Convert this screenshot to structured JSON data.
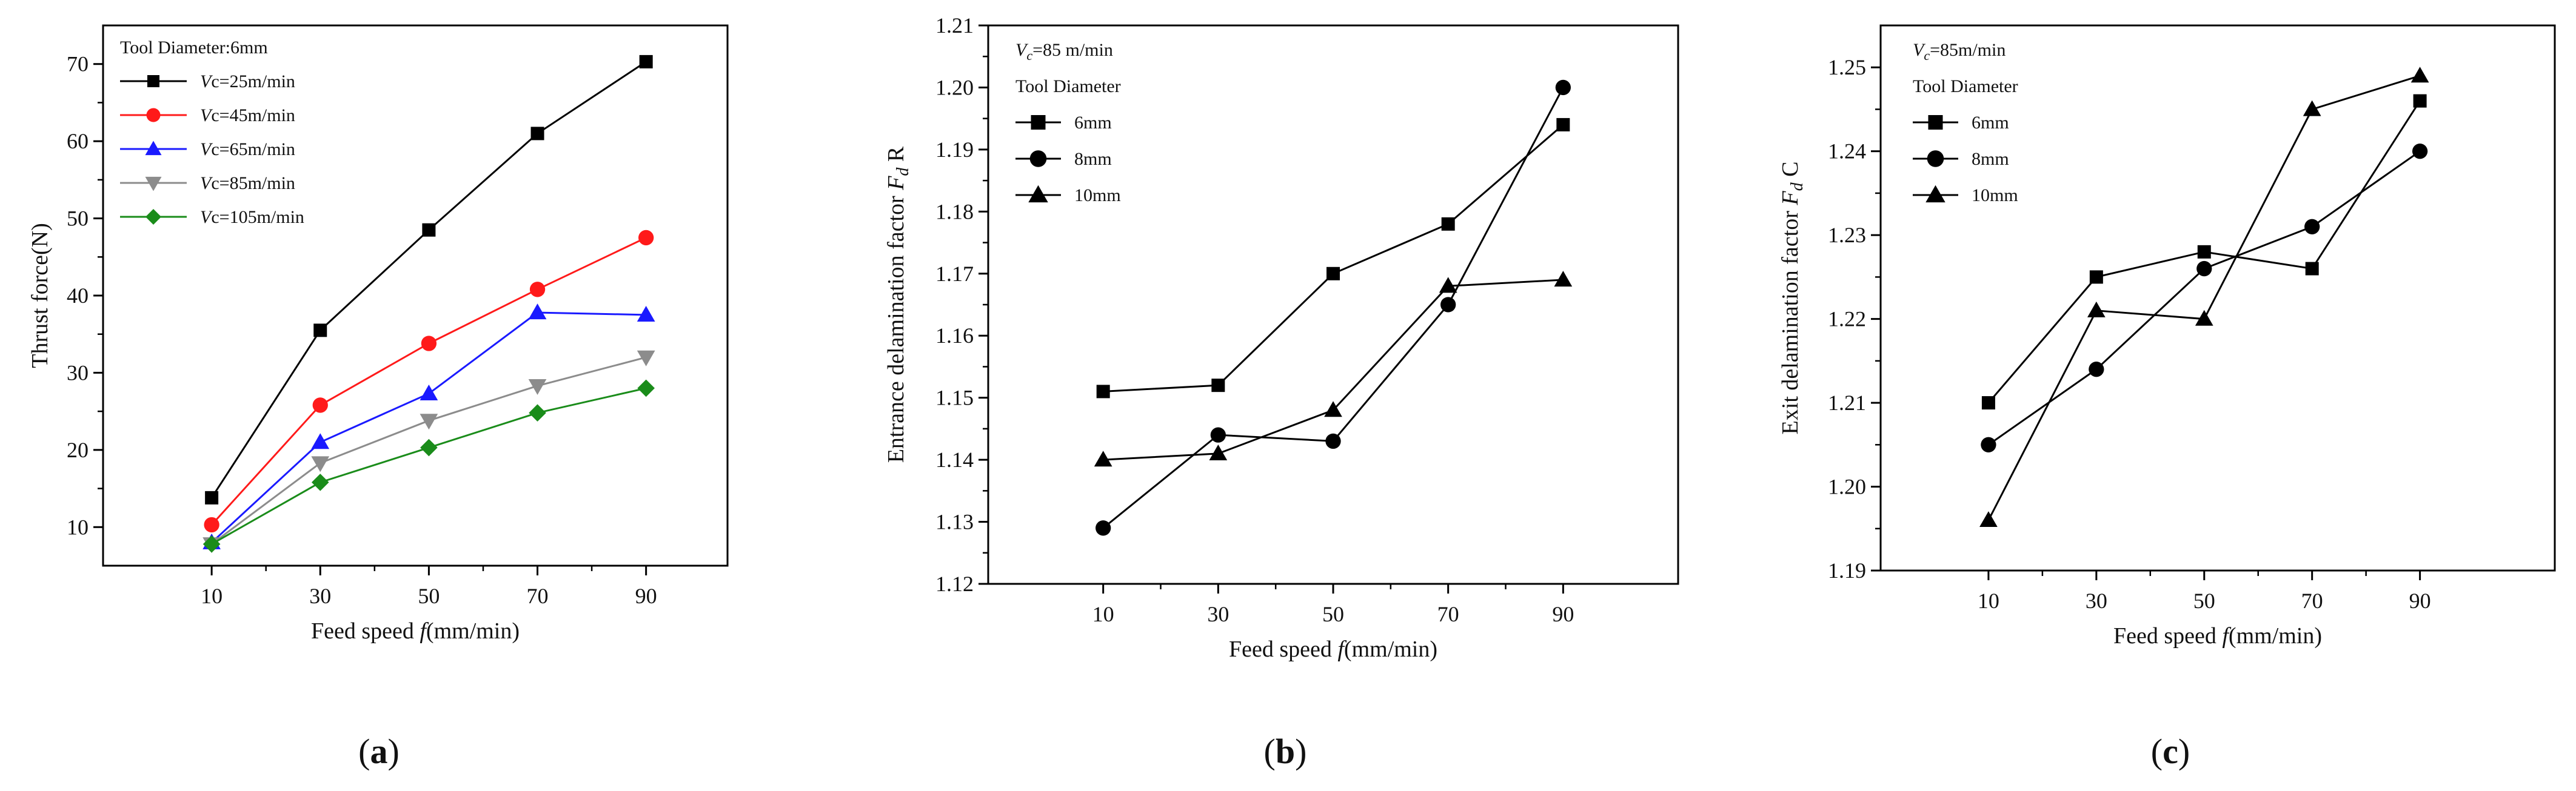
{
  "chart_data": [
    {
      "type": "line",
      "panel_label": "a",
      "legend_title": "Tool Diameter:6mm",
      "xlabel": "Feed speed ",
      "xlabel_symbol": "f",
      "xlabel_unit": "(mm/min)",
      "ylabel": "Thrust force(N)",
      "x": [
        10,
        30,
        50,
        70,
        90
      ],
      "xlim": [
        -10,
        105
      ],
      "ylim": [
        5,
        75
      ],
      "yticks": [
        10,
        20,
        30,
        40,
        50,
        60,
        70
      ],
      "ytick_labels": [
        "10",
        "20",
        "30",
        "40",
        "50",
        "60",
        "70"
      ],
      "series": [
        {
          "symbol": "V",
          "label": "c=25m/min",
          "color": "#000000",
          "marker": "square",
          "values": [
            13.8,
            35.5,
            48.5,
            61.0,
            70.3
          ]
        },
        {
          "symbol": "V",
          "label": "c=45m/min",
          "color": "#ff1a1a",
          "marker": "circle",
          "values": [
            10.3,
            25.8,
            33.8,
            40.8,
            47.5
          ]
        },
        {
          "symbol": "V",
          "label": "c=65m/min",
          "color": "#1a1aff",
          "marker": "triangle-up",
          "values": [
            8.0,
            21.0,
            27.3,
            37.8,
            37.5
          ]
        },
        {
          "symbol": "V",
          "label": "c=85m/min",
          "color": "#8c8c8c",
          "marker": "triangle-down",
          "values": [
            7.8,
            18.3,
            23.8,
            28.3,
            32.0
          ]
        },
        {
          "symbol": "V",
          "label": "c=105m/min",
          "color": "#1a8c1a",
          "marker": "diamond",
          "values": [
            7.8,
            15.8,
            20.3,
            24.8,
            28.0
          ]
        }
      ]
    },
    {
      "type": "line",
      "panel_label": "b",
      "annotation_symbol": "V",
      "annotation_sub": "c",
      "annotation": "=85 m/min",
      "legend_title": "Tool Diameter",
      "xlabel": "Feed speed ",
      "xlabel_symbol": "f",
      "xlabel_unit": "(mm/min)",
      "ylabel": "Entrance delamination factor ",
      "ylabel_symbol": "F",
      "ylabel_sub": "d",
      "ylabel_suffix": " R",
      "x": [
        10,
        30,
        50,
        70,
        90
      ],
      "xlim": [
        -10,
        110
      ],
      "ylim": [
        1.12,
        1.21
      ],
      "yticks": [
        1.12,
        1.13,
        1.14,
        1.15,
        1.16,
        1.17,
        1.18,
        1.19,
        1.2,
        1.21
      ],
      "ytick_labels": [
        "1.12",
        "1.13",
        "1.14",
        "1.15",
        "1.16",
        "1.17",
        "1.18",
        "1.19",
        "1.20",
        "1.21"
      ],
      "series": [
        {
          "label": "6mm",
          "color": "#000000",
          "marker": "square",
          "values": [
            1.151,
            1.152,
            1.17,
            1.178,
            1.194
          ]
        },
        {
          "label": "8mm",
          "color": "#000000",
          "marker": "circle",
          "values": [
            1.129,
            1.144,
            1.143,
            1.165,
            1.2
          ]
        },
        {
          "label": "10mm",
          "color": "#000000",
          "marker": "triangle-up",
          "values": [
            1.14,
            1.141,
            1.148,
            1.168,
            1.169
          ]
        }
      ]
    },
    {
      "type": "line",
      "panel_label": "c",
      "annotation_symbol": "V",
      "annotation_sub": "c",
      "annotation": "=85m/min",
      "legend_title": "Tool Diameter",
      "xlabel": "Feed speed ",
      "xlabel_symbol": "f",
      "xlabel_unit": "(mm/min)",
      "ylabel": "Exit delamination factor ",
      "ylabel_symbol": "F",
      "ylabel_sub": "d",
      "ylabel_suffix": " C",
      "x": [
        10,
        30,
        50,
        70,
        90
      ],
      "xlim": [
        -10,
        115
      ],
      "ylim": [
        1.19,
        1.255
      ],
      "yticks": [
        1.19,
        1.2,
        1.21,
        1.22,
        1.23,
        1.24,
        1.25
      ],
      "ytick_labels": [
        "1.19",
        "1.20",
        "1.21",
        "1.22",
        "1.23",
        "1.24",
        "1.25"
      ],
      "series": [
        {
          "label": "6mm",
          "color": "#000000",
          "marker": "square",
          "values": [
            1.21,
            1.225,
            1.228,
            1.226,
            1.246
          ]
        },
        {
          "label": "8mm",
          "color": "#000000",
          "marker": "circle",
          "values": [
            1.205,
            1.214,
            1.226,
            1.231,
            1.24
          ]
        },
        {
          "label": "10mm",
          "color": "#000000",
          "marker": "triangle-up",
          "values": [
            1.196,
            1.221,
            1.22,
            1.245,
            1.249
          ]
        }
      ]
    }
  ]
}
